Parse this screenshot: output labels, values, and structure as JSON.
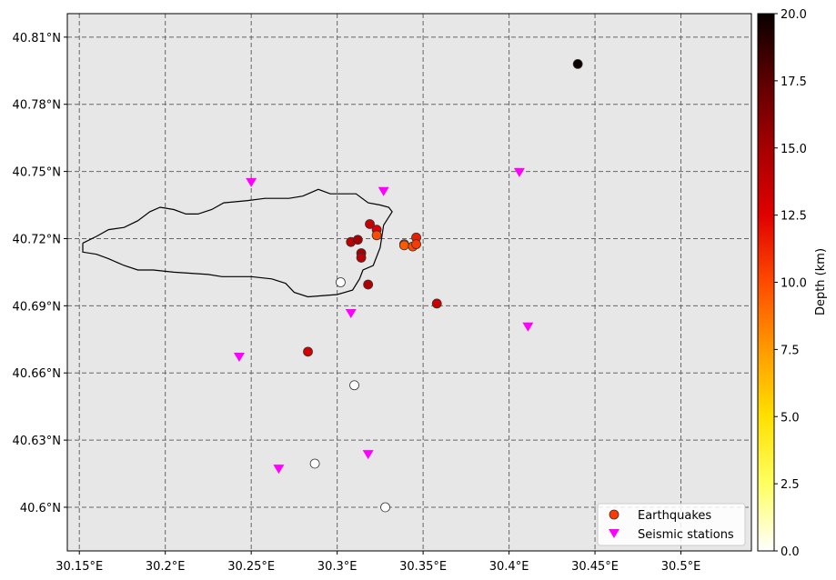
{
  "map": {
    "x_range": [
      30.143,
      30.541
    ],
    "y_range": [
      40.5805,
      40.8205
    ],
    "background": "#e7e7e7",
    "grid_color": "#666666",
    "x_ticks": [
      {
        "value": 30.15,
        "label": "30.15°E"
      },
      {
        "value": 30.2,
        "label": "30.2°E"
      },
      {
        "value": 30.25,
        "label": "30.25°E"
      },
      {
        "value": 30.3,
        "label": "30.3°E"
      },
      {
        "value": 30.35,
        "label": "30.35°E"
      },
      {
        "value": 30.4,
        "label": "30.4°E"
      },
      {
        "value": 30.45,
        "label": "30.45°E"
      },
      {
        "value": 30.5,
        "label": "30.5°E"
      }
    ],
    "y_ticks": [
      {
        "value": 40.6,
        "label": "40.6°N"
      },
      {
        "value": 40.63,
        "label": "40.63°N"
      },
      {
        "value": 40.66,
        "label": "40.66°N"
      },
      {
        "value": 40.69,
        "label": "40.69°N"
      },
      {
        "value": 40.72,
        "label": "40.72°N"
      },
      {
        "value": 40.75,
        "label": "40.75°N"
      },
      {
        "value": 40.78,
        "label": "40.78°N"
      },
      {
        "value": 40.81,
        "label": "40.81°N"
      }
    ],
    "lake_outline": [
      [
        30.152,
        40.718
      ],
      [
        30.16,
        40.721
      ],
      [
        30.167,
        40.724
      ],
      [
        30.176,
        40.725
      ],
      [
        30.184,
        40.728
      ],
      [
        30.191,
        40.732
      ],
      [
        30.197,
        40.734
      ],
      [
        30.205,
        40.733
      ],
      [
        30.212,
        40.731
      ],
      [
        30.219,
        40.731
      ],
      [
        30.227,
        40.733
      ],
      [
        30.234,
        40.736
      ],
      [
        30.248,
        40.737
      ],
      [
        30.258,
        40.738
      ],
      [
        30.272,
        40.738
      ],
      [
        30.28,
        40.739
      ],
      [
        30.289,
        40.742
      ],
      [
        30.296,
        40.74
      ],
      [
        30.304,
        40.74
      ],
      [
        30.311,
        40.74
      ],
      [
        30.318,
        40.736
      ],
      [
        30.325,
        40.735
      ],
      [
        30.33,
        40.734
      ],
      [
        30.332,
        40.732
      ],
      [
        30.327,
        40.726
      ],
      [
        30.325,
        40.716
      ],
      [
        30.321,
        40.708
      ],
      [
        30.315,
        40.706
      ],
      [
        30.313,
        40.702
      ],
      [
        30.309,
        40.697
      ],
      [
        30.3,
        40.695
      ],
      [
        30.283,
        40.694
      ],
      [
        30.275,
        40.696
      ],
      [
        30.27,
        40.7
      ],
      [
        30.262,
        40.702
      ],
      [
        30.25,
        40.703
      ],
      [
        30.233,
        40.703
      ],
      [
        30.225,
        40.704
      ],
      [
        30.205,
        40.705
      ],
      [
        30.193,
        40.706
      ],
      [
        30.184,
        40.706
      ],
      [
        30.176,
        40.708
      ],
      [
        30.167,
        40.711
      ],
      [
        30.16,
        40.713
      ],
      [
        30.152,
        40.714
      ],
      [
        30.152,
        40.718
      ]
    ],
    "earthquakes": [
      {
        "lon": 30.308,
        "lat": 40.7185,
        "depth": 14
      },
      {
        "lon": 30.312,
        "lat": 40.7195,
        "depth": 15
      },
      {
        "lon": 30.319,
        "lat": 40.7265,
        "depth": 13.5
      },
      {
        "lon": 30.323,
        "lat": 40.724,
        "depth": 12.5
      },
      {
        "lon": 30.323,
        "lat": 40.7215,
        "depth": 10
      },
      {
        "lon": 30.314,
        "lat": 40.7135,
        "depth": 15
      },
      {
        "lon": 30.314,
        "lat": 40.7115,
        "depth": 14
      },
      {
        "lon": 30.318,
        "lat": 40.6995,
        "depth": 14.5
      },
      {
        "lon": 30.339,
        "lat": 40.7175,
        "depth": 11
      },
      {
        "lon": 30.339,
        "lat": 40.717,
        "depth": 9.5
      },
      {
        "lon": 30.344,
        "lat": 40.7165,
        "depth": 10
      },
      {
        "lon": 30.346,
        "lat": 40.7205,
        "depth": 11.5
      },
      {
        "lon": 30.346,
        "lat": 40.7175,
        "depth": 10.5
      },
      {
        "lon": 30.358,
        "lat": 40.691,
        "depth": 13.5
      },
      {
        "lon": 30.283,
        "lat": 40.6695,
        "depth": 13
      },
      {
        "lon": 30.44,
        "lat": 40.798,
        "depth": 20
      },
      {
        "lon": 30.302,
        "lat": 40.7005,
        "depth": 0
      },
      {
        "lon": 30.31,
        "lat": 40.6545,
        "depth": 0
      },
      {
        "lon": 30.287,
        "lat": 40.6195,
        "depth": 0
      },
      {
        "lon": 30.328,
        "lat": 40.6,
        "depth": 0
      }
    ],
    "stations": [
      {
        "lon": 30.25,
        "lat": 40.745
      },
      {
        "lon": 30.327,
        "lat": 40.741
      },
      {
        "lon": 30.406,
        "lat": 40.7495
      },
      {
        "lon": 30.308,
        "lat": 40.6865
      },
      {
        "lon": 30.411,
        "lat": 40.6805
      },
      {
        "lon": 30.243,
        "lat": 40.667
      },
      {
        "lon": 30.266,
        "lat": 40.617
      },
      {
        "lon": 30.318,
        "lat": 40.6235
      }
    ],
    "station_color": "#ff00ff"
  },
  "legend": {
    "location": "lower-right",
    "earthquakes_label": "Earthquakes",
    "stations_label": "Seismic stations",
    "earthquake_swatch_color": "#ff3a00"
  },
  "colorbar": {
    "label": "Depth (km)",
    "range": [
      0,
      20
    ],
    "colormap": "hot_r",
    "ticks": [
      "0.0",
      "2.5",
      "5.0",
      "7.5",
      "10.0",
      "12.5",
      "15.0",
      "17.5",
      "20.0"
    ],
    "tick_values": [
      0,
      2.5,
      5,
      7.5,
      10,
      12.5,
      15,
      17.5,
      20
    ]
  }
}
